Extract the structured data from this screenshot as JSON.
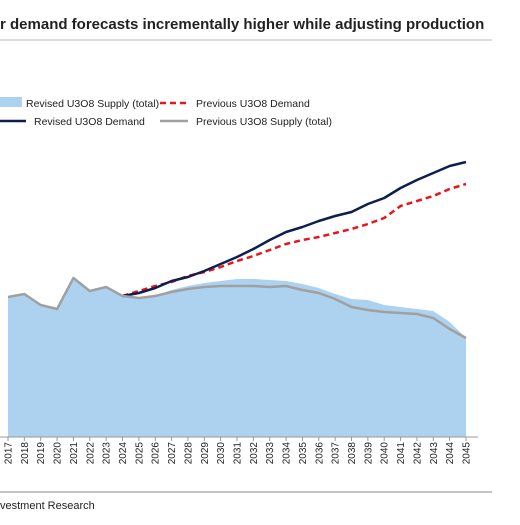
{
  "chart_data": {
    "type": "line",
    "title": "r demand forecasts incrementally higher while adjusting production",
    "source": "vestment Research",
    "categories": [
      "2017",
      "2018",
      "2019",
      "2020",
      "2021",
      "2022",
      "2023",
      "2024",
      "2025",
      "2026",
      "2027",
      "2028",
      "2029",
      "2030",
      "2031",
      "2032",
      "2033",
      "2034",
      "2035",
      "2036",
      "2037",
      "2038",
      "2039",
      "2040",
      "2041",
      "2042",
      "2043",
      "2044",
      "2045"
    ],
    "ylim": [
      0,
      300
    ],
    "series": [
      {
        "name": "Revised U3O8 Supply (total)",
        "color": "#acd2ef",
        "kind": "area",
        "values": [
          140,
          143,
          132,
          128,
          159,
          146,
          150,
          141,
          139,
          141,
          147,
          151,
          154,
          156,
          158,
          158,
          157,
          156,
          153,
          149,
          143,
          138,
          137,
          132,
          130,
          128,
          126,
          115,
          99
        ]
      },
      {
        "name": "Previous U3O8 Demand",
        "color": "#e8161b",
        "kind": "line",
        "dash": true,
        "values": [
          null,
          null,
          null,
          null,
          null,
          null,
          null,
          141,
          146,
          151,
          155,
          161,
          165,
          170,
          176,
          181,
          187,
          193,
          197,
          200,
          204,
          208,
          213,
          219,
          231,
          236,
          241,
          248,
          253
        ]
      },
      {
        "name": "Revised U3O8 Demand",
        "color": "#0d1f4f",
        "kind": "line",
        "dash": false,
        "values": [
          null,
          null,
          null,
          null,
          null,
          null,
          null,
          141,
          144,
          149,
          156,
          160,
          166,
          173,
          180,
          188,
          197,
          205,
          210,
          216,
          221,
          225,
          233,
          239,
          249,
          257,
          264,
          271,
          275
        ]
      },
      {
        "name": "Previous U3O8 Supply (total)",
        "color": "#a0a0a0",
        "kind": "line",
        "dash": false,
        "values": [
          140,
          143,
          132,
          128,
          159,
          146,
          150,
          141,
          139,
          141,
          145,
          148,
          150,
          151,
          151,
          151,
          150,
          151,
          147,
          144,
          138,
          130,
          127,
          125,
          124,
          123,
          119,
          108,
          99
        ]
      }
    ]
  }
}
